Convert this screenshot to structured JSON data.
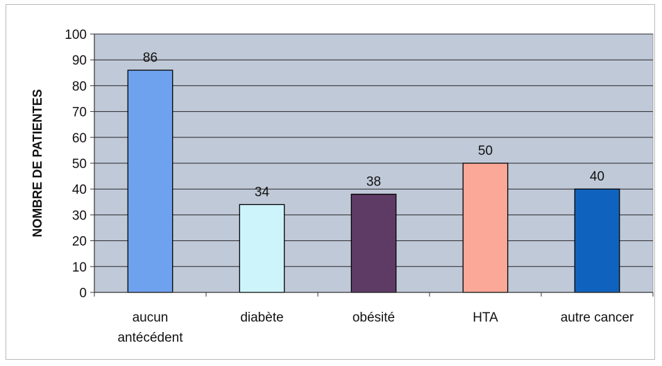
{
  "chart_data": {
    "type": "bar",
    "categories": [
      [
        "aucun",
        "antécédent"
      ],
      [
        "diabète"
      ],
      [
        "obésité"
      ],
      [
        "HTA"
      ],
      [
        "autre cancer"
      ]
    ],
    "values": [
      86,
      34,
      38,
      50,
      40
    ],
    "data_labels": [
      "86",
      "34",
      "38",
      "50",
      "40"
    ],
    "bar_colors": [
      "#6ea2ef",
      "#cdf4fb",
      "#5e3b65",
      "#fba898",
      "#0f63be"
    ],
    "title": "",
    "xlabel": "",
    "ylabel": "NOMBRE DE PATIENTES",
    "ylim": [
      0,
      100
    ],
    "yticks": [
      "0",
      "10",
      "20",
      "30",
      "40",
      "50",
      "60",
      "70",
      "80",
      "90",
      "100"
    ],
    "grid": true,
    "legend": "none",
    "plot_background": "#c0c9d8"
  }
}
